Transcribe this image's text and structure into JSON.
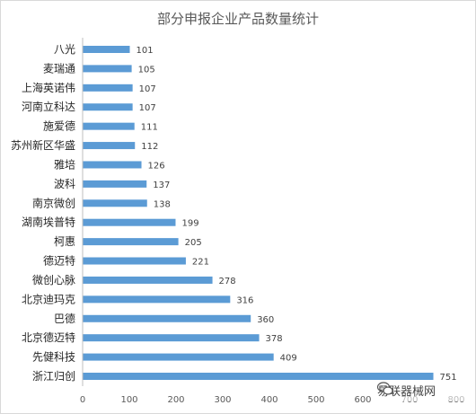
{
  "chart_data": {
    "type": "bar",
    "orientation": "horizontal",
    "title": "部分申报企业产品数量统计",
    "categories": [
      "八光",
      "麦瑞通",
      "上海英诺伟",
      "河南立科达",
      "施爱德",
      "苏州新区华盛",
      "雅培",
      "波科",
      "南京微创",
      "湖南埃普特",
      "柯惠",
      "德迈特",
      "微创心脉",
      "北京迪玛克",
      "巴德",
      "北京德迈特",
      "先健科技",
      "浙江归创"
    ],
    "values": [
      101,
      105,
      107,
      107,
      111,
      112,
      126,
      137,
      138,
      199,
      205,
      221,
      278,
      316,
      360,
      378,
      409,
      751
    ],
    "xlim": [
      0,
      800
    ],
    "xticks": [
      0,
      100,
      200,
      300,
      400,
      500,
      600,
      700,
      800
    ],
    "grid": false,
    "legend": "none",
    "bar_color": "#5b9bd5"
  },
  "watermark": {
    "text": "易联器械网",
    "icon": "wechat-icon"
  }
}
